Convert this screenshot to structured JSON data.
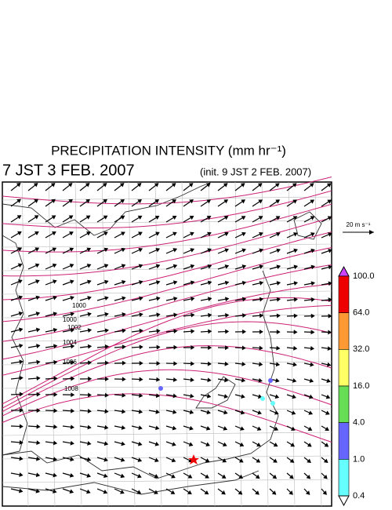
{
  "header": {
    "title": "PRECIPITATION INTENSITY (mm hr⁻¹)",
    "valid_time": "7 JST 3 FEB. 2007",
    "init_time": "(init. 9 JST 2 FEB. 2007)"
  },
  "scale_arrow": {
    "label": "20 m s⁻¹"
  },
  "colorbar": {
    "labels": [
      "100.0",
      "64.0",
      "32.0",
      "16.0",
      "4.0",
      "1.0",
      "0.4"
    ],
    "colors": [
      "#cc44ff",
      "#ee0000",
      "#ff9933",
      "#ffff66",
      "#66dd55",
      "#6666ff",
      "#66ffff",
      "#ffffff"
    ]
  },
  "isobar_labels": [
    "1000",
    "1000",
    "1002",
    "1004",
    "1006",
    "1008"
  ]
}
